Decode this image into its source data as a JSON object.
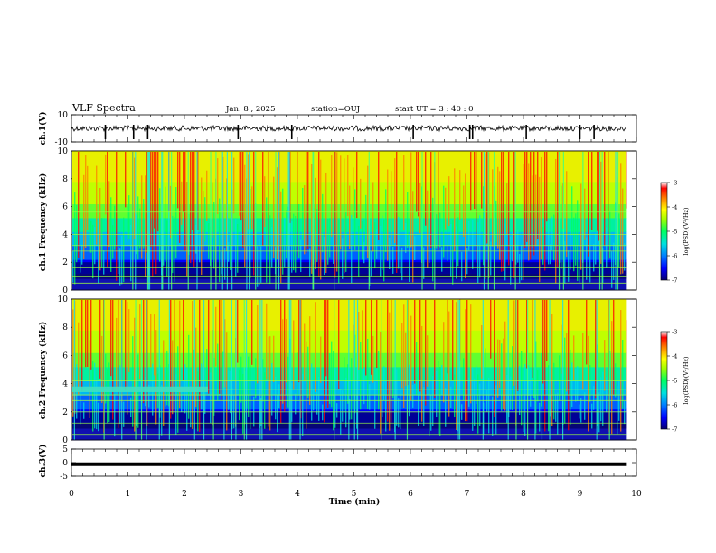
{
  "header": {
    "title": "VLF Spectra",
    "date": "Jan. 8 , 2025",
    "station": "station=OUJ",
    "start": "start UT = 3 : 40 : 0"
  },
  "colors": {
    "background": "#ffffff",
    "axes": "#000000",
    "colormap": [
      "#08006e",
      "#0000ff",
      "#0080ff",
      "#00e0e0",
      "#00ff60",
      "#a0ff00",
      "#ffff00",
      "#ff8000",
      "#ff0000",
      "#ffffff"
    ]
  },
  "chart_data": [
    {
      "type": "line",
      "id": "ch1-waveform",
      "ylabel": "ch.1(V)",
      "ylim": [
        -10,
        10
      ],
      "yticks": [
        "10",
        "-10"
      ],
      "x_range_min": [
        0,
        9.83
      ],
      "series": [
        {
          "baseline_v": 0,
          "spike_times_min": [
            0.6,
            1.1,
            1.35,
            2.95,
            3.9,
            6.05,
            7.05,
            7.1,
            8.05,
            9.0,
            9.25
          ]
        }
      ]
    },
    {
      "type": "heatmap",
      "id": "ch1-spectrogram",
      "ylabel": "ch.1 Frequency (kHz)",
      "ylim": [
        0,
        10
      ],
      "yticks": [
        "0",
        "2",
        "4",
        "6",
        "8",
        "10"
      ],
      "x_range_min": [
        0,
        9.83
      ],
      "colorbar": {
        "label": "log(PSD)(V²/Hz)",
        "range": [
          -7,
          -3
        ],
        "ticks": [
          "-7",
          "-6",
          "-5",
          "-4",
          "-3"
        ]
      },
      "horizontal_lines_khz": [
        0.5,
        1.0,
        1.6,
        2.3,
        2.8,
        3.2,
        4.0,
        5.6
      ]
    },
    {
      "type": "heatmap",
      "id": "ch2-spectrogram",
      "ylabel": "ch.2 Frequency (kHz)",
      "ylim": [
        0,
        10
      ],
      "yticks": [
        "0",
        "2",
        "4",
        "6",
        "8",
        "10"
      ],
      "x_range_min": [
        0,
        9.83
      ],
      "colorbar": {
        "label": "log(PSD)(V²/Hz)",
        "range": [
          -7,
          -3
        ],
        "ticks": [
          "-7",
          "-6",
          "-5",
          "-4",
          "-3"
        ]
      },
      "horizontal_lines_khz": [
        0.4,
        1.2,
        2.0,
        2.8,
        3.2,
        3.6,
        4.2
      ],
      "band_feature": {
        "freq_khz": [
          3.4,
          3.8
        ],
        "time_min": [
          0,
          2.4
        ]
      }
    },
    {
      "type": "line",
      "id": "ch3-waveform",
      "ylabel": "ch.3(V)",
      "ylim": [
        -5,
        5
      ],
      "yticks": [
        "5",
        "0",
        "-5"
      ],
      "x_range_min": [
        0,
        9.83
      ],
      "series": [
        {
          "constant_v": -0.6
        }
      ]
    }
  ],
  "xaxis": {
    "label": "Time (min)",
    "range": [
      0,
      10
    ],
    "ticks": [
      "0",
      "1",
      "2",
      "3",
      "4",
      "5",
      "6",
      "7",
      "8",
      "9",
      "10"
    ]
  }
}
